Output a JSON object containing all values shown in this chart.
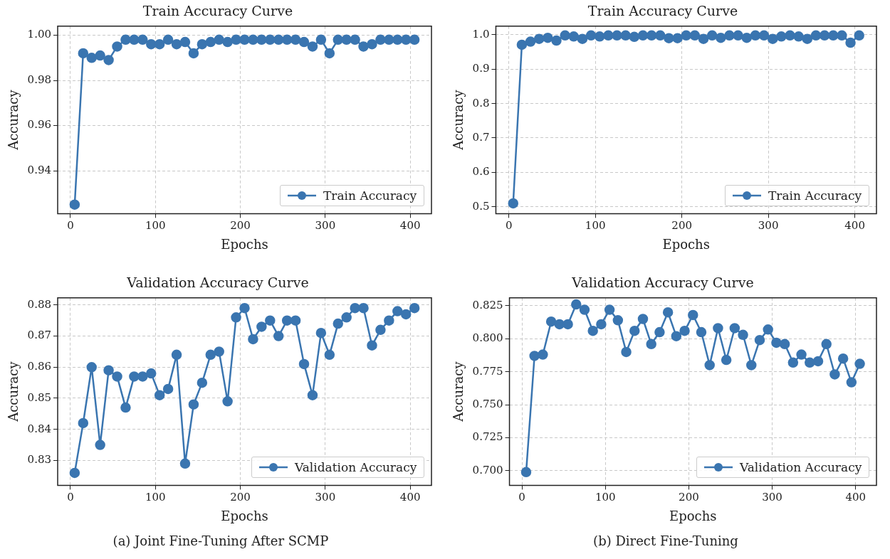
{
  "chart_data": [
    {
      "type": "line",
      "title": "Train Accuracy Curve",
      "xlabel": "Epochs",
      "ylabel": "Accuracy",
      "x": [
        5,
        15,
        25,
        35,
        45,
        55,
        65,
        75,
        85,
        95,
        105,
        115,
        125,
        135,
        145,
        155,
        165,
        175,
        185,
        195,
        205,
        215,
        225,
        235,
        245,
        255,
        265,
        275,
        285,
        295,
        305,
        315,
        325,
        335,
        345,
        355,
        365,
        375,
        385,
        395,
        405
      ],
      "series": [
        {
          "name": "Train Accuracy",
          "color": "#3a75b0",
          "values": [
            0.925,
            0.992,
            0.99,
            0.991,
            0.989,
            0.995,
            0.998,
            0.998,
            0.998,
            0.996,
            0.996,
            0.998,
            0.996,
            0.997,
            0.992,
            0.996,
            0.997,
            0.998,
            0.997,
            0.998,
            0.998,
            0.998,
            0.998,
            0.998,
            0.998,
            0.998,
            0.998,
            0.997,
            0.995,
            0.998,
            0.992,
            0.998,
            0.998,
            0.998,
            0.995,
            0.996,
            0.998,
            0.998,
            0.998,
            0.998,
            0.998
          ]
        }
      ],
      "xlim": [
        -15,
        425
      ],
      "ylim": [
        0.921,
        1.004
      ],
      "xticks": [
        0,
        100,
        200,
        300,
        400
      ],
      "yticks": [
        0.94,
        0.96,
        0.98,
        {
          "value": 1,
          "label": "1.00"
        }
      ],
      "grid": true,
      "legend": "bottom right",
      "marker": "circle",
      "line_style": "solid"
    },
    {
      "type": "line",
      "title": "Train Accuracy Curve",
      "xlabel": "Epochs",
      "ylabel": "Accuracy",
      "x": [
        5,
        15,
        25,
        35,
        45,
        55,
        65,
        75,
        85,
        95,
        105,
        115,
        125,
        135,
        145,
        155,
        165,
        175,
        185,
        195,
        205,
        215,
        225,
        235,
        245,
        255,
        265,
        275,
        285,
        295,
        305,
        315,
        325,
        335,
        345,
        355,
        365,
        375,
        385,
        395,
        405
      ],
      "series": [
        {
          "name": "Train Accuracy",
          "color": "#3a75b0",
          "values": [
            0.51,
            0.971,
            0.98,
            0.988,
            0.991,
            0.983,
            0.998,
            0.995,
            0.988,
            0.998,
            0.995,
            0.998,
            0.998,
            0.998,
            0.994,
            0.998,
            0.998,
            0.998,
            0.99,
            0.99,
            0.998,
            0.998,
            0.988,
            0.998,
            0.991,
            0.998,
            0.998,
            0.991,
            0.998,
            0.998,
            0.988,
            0.995,
            0.998,
            0.995,
            0.988,
            0.998,
            0.998,
            0.998,
            0.998,
            0.977,
            0.998
          ]
        }
      ],
      "xlim": [
        -15,
        425
      ],
      "ylim": [
        0.48,
        1.025
      ],
      "xticks": [
        0,
        100,
        200,
        300,
        400
      ],
      "yticks": [
        0.5,
        0.6,
        0.7,
        0.8,
        0.9,
        {
          "value": 1,
          "label": "1.0"
        }
      ],
      "grid": true,
      "legend": "bottom right",
      "marker": "circle",
      "line_style": "solid"
    },
    {
      "type": "line",
      "title": "Validation Accuracy Curve",
      "xlabel": "Epochs",
      "ylabel": "Accuracy",
      "x": [
        5,
        15,
        25,
        35,
        45,
        55,
        65,
        75,
        85,
        95,
        105,
        115,
        125,
        135,
        145,
        155,
        165,
        175,
        185,
        195,
        205,
        215,
        225,
        235,
        245,
        255,
        265,
        275,
        285,
        295,
        305,
        315,
        325,
        335,
        345,
        355,
        365,
        375,
        385,
        395,
        405
      ],
      "series": [
        {
          "name": "Validation Accuracy",
          "color": "#3a75b0",
          "values": [
            0.826,
            0.842,
            0.86,
            0.835,
            0.859,
            0.857,
            0.847,
            0.857,
            0.857,
            0.858,
            0.851,
            0.853,
            0.864,
            0.829,
            0.848,
            0.855,
            0.864,
            0.865,
            0.849,
            0.876,
            0.879,
            0.869,
            0.873,
            0.875,
            0.87,
            0.875,
            0.875,
            0.861,
            0.851,
            0.871,
            0.864,
            0.874,
            0.876,
            0.879,
            0.879,
            0.867,
            0.872,
            0.875,
            0.878,
            0.877,
            0.879
          ]
        }
      ],
      "xlim": [
        -15,
        425
      ],
      "ylim": [
        0.822,
        0.8823
      ],
      "xticks": [
        0,
        100,
        200,
        300,
        400
      ],
      "yticks": [
        0.83,
        0.84,
        0.85,
        0.86,
        0.87,
        0.88
      ],
      "grid": true,
      "legend": "bottom right",
      "marker": "circle",
      "line_style": "solid",
      "annotations": [
        "(a) Joint Fine-Tuning After SCMP"
      ]
    },
    {
      "type": "line",
      "title": "Validation Accuracy Curve",
      "xlabel": "Epochs",
      "ylabel": "Accuracy",
      "x": [
        5,
        15,
        25,
        35,
        45,
        55,
        65,
        75,
        85,
        95,
        105,
        115,
        125,
        135,
        145,
        155,
        165,
        175,
        185,
        195,
        205,
        215,
        225,
        235,
        245,
        255,
        265,
        275,
        285,
        295,
        305,
        315,
        325,
        335,
        345,
        355,
        365,
        375,
        385,
        395,
        405
      ],
      "series": [
        {
          "name": "Validation Accuracy",
          "color": "#3a75b0",
          "values": [
            0.699,
            0.787,
            0.788,
            0.813,
            0.811,
            0.811,
            0.826,
            0.822,
            0.806,
            0.811,
            0.822,
            0.814,
            0.79,
            0.806,
            0.815,
            0.796,
            0.805,
            0.82,
            0.802,
            0.806,
            0.818,
            0.805,
            0.78,
            0.808,
            0.784,
            0.808,
            0.803,
            0.78,
            0.799,
            0.807,
            0.797,
            0.796,
            0.782,
            0.788,
            0.782,
            0.783,
            0.796,
            0.773,
            0.785,
            0.767,
            0.781
          ]
        }
      ],
      "xlim": [
        -15,
        425
      ],
      "ylim": [
        0.689,
        0.831
      ],
      "xticks": [
        0,
        100,
        200,
        300,
        400
      ],
      "yticks": [
        {
          "value": 0.7,
          "label": "0.700"
        },
        0.725,
        {
          "value": 0.75,
          "label": "0.750"
        },
        0.775,
        {
          "value": 0.8,
          "label": "0.800"
        },
        0.825
      ],
      "grid": true,
      "legend": "bottom right",
      "marker": "circle",
      "line_style": "solid",
      "annotations": [
        "(b) Direct Fine-Tuning"
      ]
    }
  ]
}
